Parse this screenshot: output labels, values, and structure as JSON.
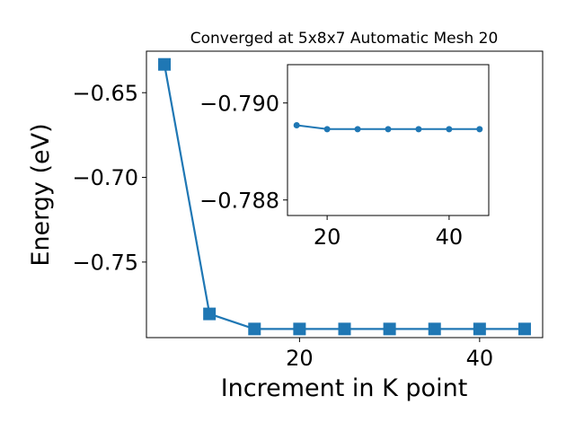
{
  "chart_data": [
    {
      "type": "line",
      "title": "Converged at 5x8x7 Automatic Mesh 20",
      "xlabel": "Increment in K point",
      "ylabel": "Energy (eV)",
      "x": [
        5,
        10,
        15,
        20,
        25,
        30,
        35,
        40,
        45
      ],
      "series": [
        {
          "values": [
            -0.6333,
            -0.7806,
            -0.7895,
            -0.7895,
            -0.7895,
            -0.7895,
            -0.7895,
            -0.7895,
            -0.7895
          ],
          "marker": "square",
          "color": "#1f77b4"
        }
      ],
      "xlim": [
        3,
        47
      ],
      "ylim": [
        -0.7946,
        -0.6255
      ],
      "xticks": [
        20,
        40
      ],
      "xticklabels": [
        "20",
        "40"
      ],
      "yticks": [
        -0.65,
        -0.7,
        -0.75
      ],
      "yticklabels": [
        "−0.65",
        "−0.70",
        "−0.75"
      ],
      "grid": false
    },
    {
      "type": "line",
      "role": "inset",
      "x": [
        15,
        20,
        25,
        30,
        35,
        40,
        45
      ],
      "series": [
        {
          "values": [
            -0.78954,
            -0.78946,
            -0.78946,
            -0.78946,
            -0.78946,
            -0.78946,
            -0.78946
          ],
          "marker": "circle",
          "color": "#1f77b4"
        }
      ],
      "xlim": [
        13.5,
        46.5
      ],
      "ylim": [
        -0.78768,
        -0.79079
      ],
      "xticks": [
        20,
        40
      ],
      "xticklabels": [
        "20",
        "40"
      ],
      "yticks": [
        -0.79,
        -0.788
      ],
      "yticklabels": [
        "−0.790",
        "−0.788"
      ],
      "grid": false
    }
  ]
}
